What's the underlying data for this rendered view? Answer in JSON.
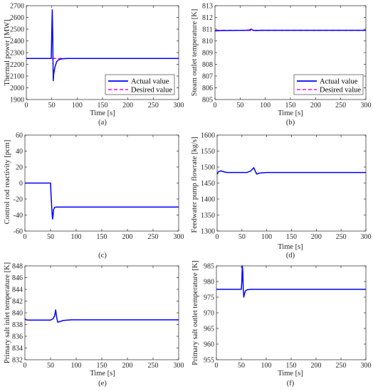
{
  "chart_data": [
    {
      "panel": "(a)",
      "type": "line",
      "xlabel": "Time [s]",
      "ylabel": "Thermal power [MW]",
      "xlim": [
        0,
        300
      ],
      "ylim": [
        1900,
        2700
      ],
      "xticks": [
        0,
        50,
        100,
        150,
        200,
        250,
        300
      ],
      "yticks": [
        1900,
        2000,
        2100,
        2200,
        2300,
        2400,
        2500,
        2600,
        2700
      ],
      "legend": "bottom-right",
      "series": [
        {
          "name": "Actual value",
          "color": "#0000ff",
          "style": "solid",
          "x": [
            0,
            49,
            50,
            51,
            52,
            53,
            54,
            56,
            58,
            60,
            64,
            70,
            80,
            100,
            300
          ],
          "y": [
            2250,
            2250,
            2450,
            2665,
            2420,
            2060,
            2120,
            2170,
            2200,
            2225,
            2240,
            2247,
            2250,
            2250,
            2250
          ]
        },
        {
          "name": "Desired value",
          "color": "#ff00ff",
          "style": "dashed",
          "x": [
            0,
            300
          ],
          "y": [
            2250,
            2250
          ]
        }
      ]
    },
    {
      "panel": "(b)",
      "type": "line",
      "xlabel": "Time [s]",
      "ylabel": "Steam outlet temperature [K]",
      "xlim": [
        0,
        300
      ],
      "ylim": [
        805,
        813
      ],
      "xticks": [
        0,
        50,
        100,
        150,
        200,
        250,
        300
      ],
      "yticks": [
        805,
        806,
        807,
        808,
        809,
        810,
        811,
        812,
        813
      ],
      "legend": "bottom-right",
      "series": [
        {
          "name": "Actual value",
          "color": "#0000ff",
          "style": "solid",
          "x": [
            0,
            10,
            60,
            68,
            72,
            76,
            82,
            90,
            300
          ],
          "y": [
            810.85,
            810.88,
            810.9,
            810.92,
            811.0,
            810.9,
            810.88,
            810.9,
            810.9
          ]
        },
        {
          "name": "Desired value",
          "color": "#ff00ff",
          "style": "dashed",
          "x": [
            0,
            300
          ],
          "y": [
            810.9,
            810.9
          ]
        }
      ]
    },
    {
      "panel": "(c)",
      "type": "line",
      "xlabel": "",
      "ylabel": "Control rod reactivity [pcm]",
      "xlim": [
        0,
        300
      ],
      "ylim": [
        -60,
        60
      ],
      "xticks": [
        0,
        50,
        100,
        150,
        200,
        250,
        300
      ],
      "yticks": [
        -60,
        -40,
        -20,
        0,
        20,
        40,
        60
      ],
      "series": [
        {
          "name": "",
          "color": "#0000ff",
          "style": "solid",
          "x": [
            0,
            50,
            51,
            53,
            54,
            55,
            56,
            58,
            61,
            65,
            80,
            300
          ],
          "y": [
            0,
            0,
            -15,
            -38,
            -45,
            -40,
            -33,
            -30.5,
            -30,
            -30,
            -30,
            -30
          ]
        }
      ]
    },
    {
      "panel": "(d)",
      "type": "line",
      "xlabel": "Time [s]",
      "ylabel": "Feedwater pump flowrate [kg/s]",
      "xlim": [
        0,
        300
      ],
      "ylim": [
        1300,
        1600
      ],
      "xticks": [
        0,
        50,
        100,
        150,
        200,
        250,
        300
      ],
      "yticks": [
        1300,
        1350,
        1400,
        1450,
        1500,
        1550,
        1600
      ],
      "series": [
        {
          "name": "",
          "color": "#0000ff",
          "style": "solid",
          "x": [
            0,
            3,
            8,
            14,
            20,
            60,
            68,
            72,
            74,
            77,
            80,
            85,
            100,
            300
          ],
          "y": [
            1478,
            1486,
            1488,
            1485,
            1483,
            1483,
            1488,
            1495,
            1498,
            1487,
            1478,
            1481,
            1483,
            1483
          ]
        }
      ]
    },
    {
      "panel": "(e)",
      "type": "line",
      "xlabel": "Time [s]",
      "ylabel": "Primary salt inlet temperature [K]",
      "xlim": [
        0,
        300
      ],
      "ylim": [
        832,
        848
      ],
      "xticks": [
        0,
        50,
        100,
        150,
        200,
        250,
        300
      ],
      "yticks": [
        832,
        834,
        836,
        838,
        840,
        842,
        844,
        846,
        848
      ],
      "series": [
        {
          "name": "",
          "color": "#0000ff",
          "style": "solid",
          "x": [
            0,
            2,
            8,
            50,
            55,
            58,
            60,
            62,
            64,
            68,
            75,
            90,
            300
          ],
          "y": [
            839.0,
            838.8,
            838.75,
            838.75,
            839.0,
            839.5,
            840.5,
            839.2,
            838.4,
            838.5,
            838.7,
            838.8,
            838.8
          ]
        }
      ]
    },
    {
      "panel": "(f)",
      "type": "line",
      "xlabel": "Time [s]",
      "ylabel": "Primary salt outlet temperature [K]",
      "xlim": [
        0,
        300
      ],
      "ylim": [
        955,
        985
      ],
      "xticks": [
        0,
        50,
        100,
        150,
        200,
        250,
        300
      ],
      "yticks": [
        955,
        960,
        965,
        970,
        975,
        980,
        985
      ],
      "series": [
        {
          "name": "",
          "color": "#0000ff",
          "style": "solid",
          "x": [
            0,
            50,
            51,
            52,
            53,
            54,
            55,
            56,
            58,
            62,
            70,
            90,
            300
          ],
          "y": [
            977.5,
            977.5,
            980,
            985,
            983,
            977,
            975,
            975.8,
            977,
            977.4,
            977.5,
            977.5,
            977.5
          ]
        }
      ]
    }
  ],
  "captions": [
    "(a)",
    "(b)",
    "(c)",
    "(d)",
    "(e)",
    "(f)"
  ]
}
